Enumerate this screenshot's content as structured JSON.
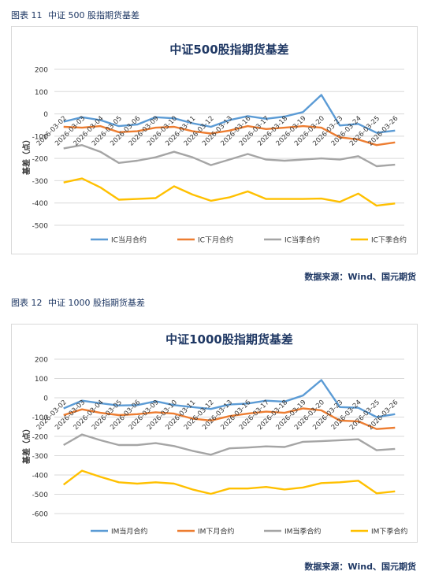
{
  "figures": [
    {
      "caption_label": "图表 11",
      "caption_text": "中证 500 股指期货基差",
      "source": "数据来源：Wind、国元期货"
    },
    {
      "caption_label": "图表 12",
      "caption_text": "中证 1000 股指期货基差",
      "source": "数据来源：Wind、国元期货"
    }
  ],
  "chart_data": [
    {
      "type": "line",
      "title": "中证500股指期货基差",
      "xlabel": "",
      "ylabel": "基差（点）",
      "ylim": [
        -500,
        200
      ],
      "yticks": [
        200,
        100,
        0,
        -100,
        -200,
        -300,
        -400,
        -500
      ],
      "grid": true,
      "legend": "bottom",
      "categories": [
        "2026-03-02",
        "2026-03-03",
        "2026-03-04",
        "2026-03-05",
        "2026-03-06",
        "2026-03-09",
        "2026-03-10",
        "2026-03-11",
        "2026-03-12",
        "2026-03-13",
        "2026-03-16",
        "2026-03-17",
        "2026-03-18",
        "2026-03-19",
        "2026-03-20",
        "2026-03-23",
        "2026-03-24",
        "2026-03-25",
        "2026-03-26"
      ],
      "category_labels": [
        "2026-03-02",
        "2026-03-03",
        "2026-03-04",
        "2026-03-05",
        "2026-03-06",
        "2026-03-09",
        "2026-03-10",
        "2026-03-11",
        "2026-03-12",
        "2026-03-13",
        "2026-03-16",
        "2026-03-17",
        "2026-03-18",
        "2026-03-19",
        "2026-03-20",
        "2026-03-23",
        "2026-03-24",
        "2026-03-25",
        "2026-03-26"
      ],
      "series": [
        {
          "name": "IC当月合约",
          "color": "#5b9bd5",
          "values": [
            -35,
            -15,
            -28,
            -55,
            -48,
            -15,
            -20,
            -42,
            -58,
            -28,
            -10,
            -22,
            -12,
            8,
            85,
            -52,
            -45,
            -85,
            -75
          ]
        },
        {
          "name": "IC下月合约",
          "color": "#ed7d31",
          "values": [
            -58,
            -62,
            -55,
            -82,
            -78,
            -62,
            -58,
            -78,
            -88,
            -75,
            -55,
            -68,
            -62,
            -55,
            -62,
            -105,
            -115,
            -140,
            -128
          ]
        },
        {
          "name": "IC当季合约",
          "color": "#a5a5a5",
          "values": [
            -155,
            -140,
            -170,
            -220,
            -210,
            -195,
            -170,
            -195,
            -230,
            -205,
            -180,
            -205,
            -210,
            -205,
            -200,
            -205,
            -190,
            -235,
            -228
          ]
        },
        {
          "name": "IC下季合约",
          "color": "#ffc000",
          "values": [
            -308,
            -290,
            -330,
            -385,
            -382,
            -378,
            -325,
            -362,
            -390,
            -375,
            -348,
            -382,
            -382,
            -382,
            -380,
            -395,
            -358,
            -412,
            -402
          ]
        }
      ]
    },
    {
      "type": "line",
      "title": "中证1000股指期货基差",
      "xlabel": "",
      "ylabel": "基差（点）",
      "ylim": [
        -600,
        200
      ],
      "yticks": [
        200,
        100,
        0,
        -100,
        -200,
        -300,
        -400,
        -500,
        -600
      ],
      "grid": true,
      "legend": "bottom",
      "categories": [
        "2026-03-02",
        "2026-03-03",
        "2026-03-04",
        "2026-03-05",
        "2026-03-06",
        "2026-03-09",
        "2026-03-10",
        "2026-03-11",
        "2026-03-12",
        "2026-03-13",
        "2026-03-16",
        "2026-03-17",
        "2026-03-18",
        "2026-03-19",
        "2026-03-20",
        "2026-03-23",
        "2026-03-24",
        "2026-03-25",
        "2026-03-26"
      ],
      "category_labels": [
        "2026-03-02",
        "2026-03-03",
        "2026-03-04",
        "2026-03-05",
        "2026-03-06",
        "2026-03-09",
        "2026-03-10",
        "2026-03-11",
        "2026-03-12",
        "2026-03-13",
        "2026-03-16",
        "2026-03-17",
        "2026-03-18",
        "2026-03-19",
        "2026-03-20",
        "2026-03-23",
        "2026-03-24",
        "2026-03-25",
        "2026-03-26"
      ],
      "series": [
        {
          "name": "IM当月合约",
          "color": "#5b9bd5",
          "values": [
            -55,
            -15,
            -28,
            -40,
            -38,
            -18,
            -38,
            -48,
            -58,
            -35,
            -30,
            -15,
            -20,
            12,
            92,
            -48,
            -52,
            -100,
            -85
          ]
        },
        {
          "name": "IM下月合约",
          "color": "#ed7d31",
          "values": [
            -90,
            -60,
            -78,
            -90,
            -85,
            -75,
            -82,
            -108,
            -118,
            -95,
            -82,
            -72,
            -78,
            -55,
            -65,
            -118,
            -122,
            -162,
            -155
          ]
        },
        {
          "name": "IM当季合约",
          "color": "#a5a5a5",
          "values": [
            -245,
            -190,
            -220,
            -245,
            -245,
            -235,
            -250,
            -275,
            -295,
            -262,
            -258,
            -252,
            -255,
            -228,
            -225,
            -220,
            -215,
            -272,
            -265
          ]
        },
        {
          "name": "IM下季合约",
          "color": "#ffc000",
          "values": [
            -450,
            -378,
            -410,
            -438,
            -445,
            -438,
            -445,
            -475,
            -498,
            -470,
            -470,
            -462,
            -475,
            -465,
            -442,
            -438,
            -430,
            -495,
            -485
          ]
        }
      ]
    }
  ]
}
